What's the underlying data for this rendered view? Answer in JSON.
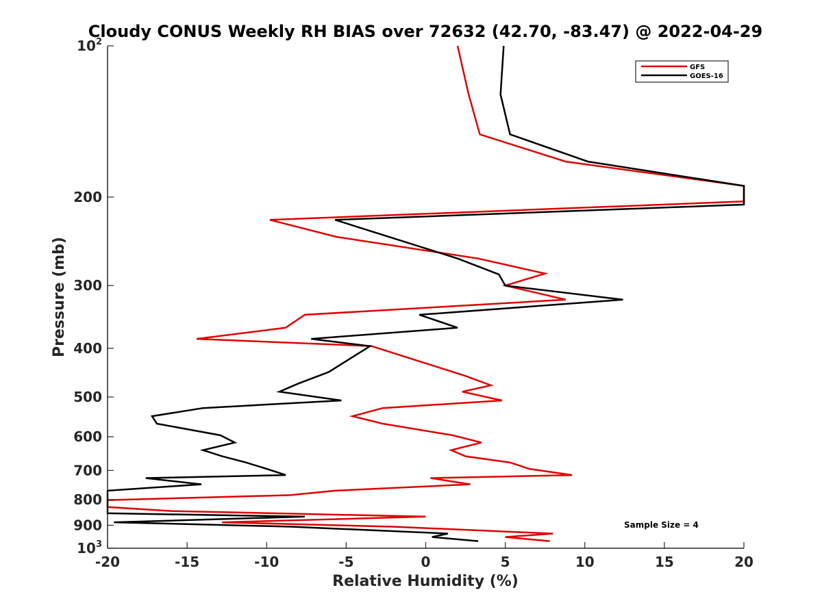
{
  "chart_data": {
    "type": "line",
    "title": "Cloudy CONUS Weekly RH BIAS over 72632 (42.70, -83.47) @ 2022-04-29",
    "xlabel": "Relative Humidity (%)",
    "ylabel": "Pressure (mb)",
    "xlim": [
      -20,
      20
    ],
    "ylim": [
      1000,
      100
    ],
    "y_scale": "log",
    "y_reversed": true,
    "grid": false,
    "legend_position": "top-right",
    "x_ticks": [
      -20,
      -15,
      -10,
      -5,
      0,
      5,
      10,
      15,
      20
    ],
    "y_ticks": [
      {
        "value": 100,
        "label": "10",
        "sup": "2"
      },
      {
        "value": 200,
        "label": "200",
        "sup": ""
      },
      {
        "value": 300,
        "label": "300",
        "sup": ""
      },
      {
        "value": 400,
        "label": "400",
        "sup": ""
      },
      {
        "value": 500,
        "label": "500",
        "sup": ""
      },
      {
        "value": 600,
        "label": "600",
        "sup": ""
      },
      {
        "value": 700,
        "label": "700",
        "sup": ""
      },
      {
        "value": 800,
        "label": "800",
        "sup": ""
      },
      {
        "value": 900,
        "label": "900",
        "sup": ""
      },
      {
        "value": 1000,
        "label": "10",
        "sup": "3"
      }
    ],
    "annotation": "Sample Size = 4",
    "series": [
      {
        "name": "GFS",
        "color": "#e00000",
        "points": [
          [
            2.0,
            100
          ],
          [
            2.7,
            125
          ],
          [
            3.4,
            150
          ],
          [
            8.8,
            170
          ],
          [
            20.0,
            190
          ],
          [
            20.0,
            204
          ],
          [
            -9.8,
            222
          ],
          [
            -5.6,
            240
          ],
          [
            3.3,
            265
          ],
          [
            7.5,
            284
          ],
          [
            5.0,
            300
          ],
          [
            8.8,
            320
          ],
          [
            -7.6,
            343
          ],
          [
            -8.8,
            364
          ],
          [
            -14.4,
            383
          ],
          [
            -3.4,
            396
          ],
          [
            2.5,
            454
          ],
          [
            4.1,
            474
          ],
          [
            2.3,
            488
          ],
          [
            4.8,
            508
          ],
          [
            -2.7,
            526
          ],
          [
            -4.6,
            546
          ],
          [
            -2.7,
            565
          ],
          [
            1.7,
            596
          ],
          [
            3.5,
            616
          ],
          [
            1.6,
            638
          ],
          [
            2.5,
            656
          ],
          [
            5.3,
            675
          ],
          [
            6.5,
            695
          ],
          [
            9.2,
            715
          ],
          [
            0.3,
            725
          ],
          [
            2.8,
            746
          ],
          [
            -5.7,
            768
          ],
          [
            -8.5,
            784
          ],
          [
            -20.0,
            802
          ],
          [
            -20.0,
            828
          ],
          [
            -16.0,
            843
          ],
          [
            0.0,
            865
          ],
          [
            -12.8,
            888
          ],
          [
            -2.1,
            906
          ],
          [
            8.0,
            935
          ],
          [
            5.0,
            950
          ],
          [
            7.8,
            968
          ]
        ]
      },
      {
        "name": "GOES-16",
        "color": "#000000",
        "points": [
          [
            4.9,
            100
          ],
          [
            4.7,
            125
          ],
          [
            5.3,
            150
          ],
          [
            10.2,
            170
          ],
          [
            20.0,
            190
          ],
          [
            20.0,
            207
          ],
          [
            -5.7,
            222
          ],
          [
            2.0,
            265
          ],
          [
            4.6,
            285
          ],
          [
            5.0,
            300
          ],
          [
            12.4,
            320
          ],
          [
            -0.4,
            343
          ],
          [
            2.0,
            364
          ],
          [
            -7.2,
            383
          ],
          [
            -3.5,
            396
          ],
          [
            -6.1,
            446
          ],
          [
            -8.0,
            470
          ],
          [
            -9.2,
            488
          ],
          [
            -5.3,
            508
          ],
          [
            -14.0,
            526
          ],
          [
            -17.2,
            546
          ],
          [
            -16.9,
            565
          ],
          [
            -12.9,
            596
          ],
          [
            -12.0,
            616
          ],
          [
            -14.0,
            638
          ],
          [
            -12.8,
            656
          ],
          [
            -11.3,
            675
          ],
          [
            -10.0,
            695
          ],
          [
            -8.8,
            715
          ],
          [
            -17.6,
            725
          ],
          [
            -14.1,
            746
          ],
          [
            -20.0,
            768
          ],
          [
            -20.0,
            852
          ],
          [
            -7.6,
            865
          ],
          [
            -19.6,
            888
          ],
          [
            -8.5,
            906
          ],
          [
            1.4,
            935
          ],
          [
            0.4,
            950
          ],
          [
            3.3,
            968
          ]
        ]
      }
    ]
  }
}
